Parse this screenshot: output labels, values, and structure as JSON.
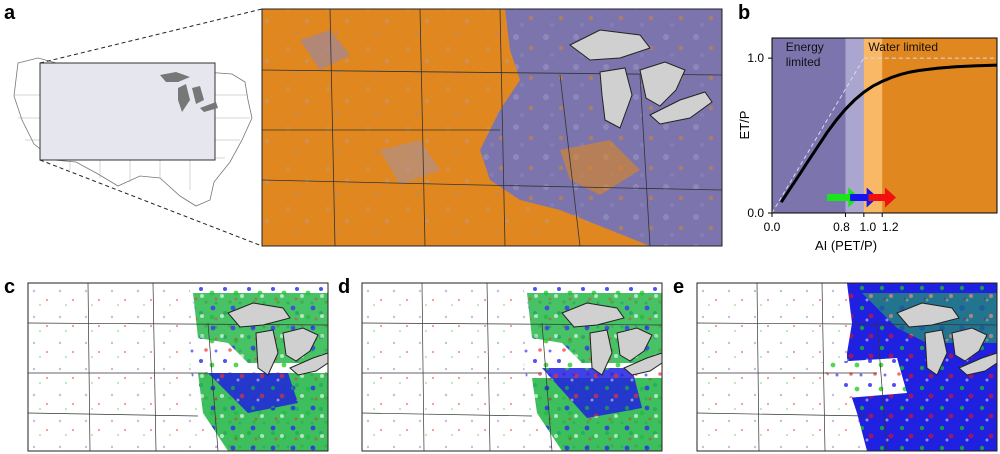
{
  "panels": {
    "a": "a",
    "b": "b",
    "c": "c",
    "d": "d",
    "e": "e"
  },
  "colors": {
    "water_limited": "#e0871f",
    "energy_limited": "#7b74ad",
    "energy_limited_light": "#aaa6d0",
    "transition_light_orange": "#f8b866",
    "green_arrow": "#19e619",
    "blue_arrow": "#1515f0",
    "red_arrow": "#f01010",
    "lakes": "#c8c8c8",
    "inset_box": "#e6e6ee"
  },
  "chart_data": {
    "type": "line",
    "title": "",
    "xlabel": "AI (PET/P)",
    "ylabel": "ET/P",
    "x_tick_labels": [
      "0.0",
      "0.8",
      "1.0",
      "1.2"
    ],
    "y_tick_labels": [
      "0.0",
      "1.0"
    ],
    "xlim": [
      0.0,
      2.45
    ],
    "ylim": [
      0.0,
      1.13
    ],
    "regions": [
      {
        "label": "Energy limited",
        "from": 0.0,
        "to": 1.0
      },
      {
        "label": "Water limited",
        "from": 1.0,
        "to": 2.45
      }
    ],
    "shaded_bands": [
      {
        "from": 0.8,
        "to": 1.0,
        "color": "energy_limited_light"
      },
      {
        "from": 1.0,
        "to": 1.2,
        "color": "transition_light_orange"
      }
    ],
    "series": [
      {
        "x": [
          0.1,
          0.2,
          0.3,
          0.4,
          0.5,
          0.6,
          0.7,
          0.8,
          0.9,
          1.0,
          1.1,
          1.2,
          1.3,
          1.4,
          1.5,
          1.6,
          1.8,
          2.0,
          2.2,
          2.45
        ],
        "values": [
          0.07,
          0.16,
          0.25,
          0.34,
          0.43,
          0.52,
          0.6,
          0.67,
          0.73,
          0.78,
          0.82,
          0.85,
          0.875,
          0.895,
          0.91,
          0.92,
          0.935,
          0.945,
          0.95,
          0.955
        ]
      }
    ],
    "limit_lines": [
      {
        "x": [
          0.0,
          1.0
        ],
        "y": [
          0.0,
          1.0
        ]
      },
      {
        "x": [
          1.0,
          2.45
        ],
        "y": [
          1.0,
          1.0
        ]
      }
    ],
    "arrows": [
      {
        "from": 0.6,
        "to": 0.95,
        "color": "green_arrow"
      },
      {
        "from": 0.85,
        "to": 1.15,
        "color": "blue_arrow"
      },
      {
        "from": 1.05,
        "to": 1.35,
        "color": "red_arrow"
      }
    ]
  }
}
